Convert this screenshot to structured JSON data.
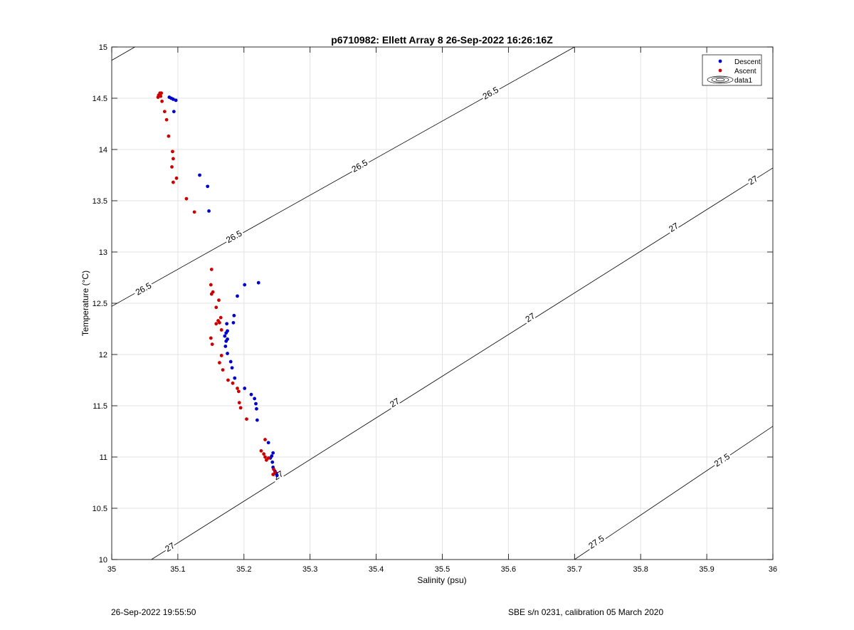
{
  "chart_data": {
    "type": "scatter",
    "title": "p6710982: Ellett Array 8 26-Sep-2022 16:26:16Z",
    "xlabel": "Salinity (psu)",
    "ylabel": "Temperature (°C)",
    "xlim": [
      35,
      36
    ],
    "ylim": [
      10,
      15
    ],
    "xticks": [
      "35",
      "35.1",
      "35.2",
      "35.3",
      "35.4",
      "35.5",
      "35.6",
      "35.7",
      "35.8",
      "35.9",
      "36"
    ],
    "yticks": [
      "10",
      "10.5",
      "11",
      "11.5",
      "12",
      "12.5",
      "13",
      "13.5",
      "14",
      "14.5",
      "15"
    ],
    "grid": true,
    "legend_position": "top-right",
    "legend": [
      "Descent",
      "Ascent",
      "data1"
    ],
    "colors": {
      "descent": "#0000cc",
      "ascent": "#cc0000",
      "contour": "#000000",
      "grid": "#e3e3e3"
    },
    "series": [
      {
        "name": "Descent",
        "points": [
          [
            35.087,
            14.51
          ],
          [
            35.09,
            14.5
          ],
          [
            35.093,
            14.49
          ],
          [
            35.097,
            14.48
          ],
          [
            35.094,
            14.37
          ],
          [
            35.133,
            13.75
          ],
          [
            35.145,
            13.64
          ],
          [
            35.147,
            13.4
          ],
          [
            35.222,
            12.7
          ],
          [
            35.201,
            12.68
          ],
          [
            35.19,
            12.57
          ],
          [
            35.185,
            12.38
          ],
          [
            35.174,
            12.3
          ],
          [
            35.184,
            12.31
          ],
          [
            35.175,
            12.23
          ],
          [
            35.173,
            12.21
          ],
          [
            35.171,
            12.18
          ],
          [
            35.175,
            12.15
          ],
          [
            35.173,
            12.13
          ],
          [
            35.172,
            12.08
          ],
          [
            35.175,
            12.01
          ],
          [
            35.18,
            11.93
          ],
          [
            35.182,
            11.87
          ],
          [
            35.186,
            11.77
          ],
          [
            35.201,
            11.67
          ],
          [
            35.211,
            11.61
          ],
          [
            35.216,
            11.57
          ],
          [
            35.218,
            11.52
          ],
          [
            35.219,
            11.47
          ],
          [
            35.22,
            11.36
          ],
          [
            35.237,
            11.14
          ],
          [
            35.244,
            11.04
          ],
          [
            35.242,
            11.01
          ],
          [
            35.24,
            10.99
          ],
          [
            35.243,
            10.95
          ],
          [
            35.244,
            10.9
          ],
          [
            35.247,
            10.86
          ],
          [
            35.249,
            10.84
          ],
          [
            35.25,
            10.82
          ]
        ]
      },
      {
        "name": "Ascent",
        "points": [
          [
            35.073,
            14.55
          ],
          [
            35.075,
            14.55
          ],
          [
            35.071,
            14.53
          ],
          [
            35.074,
            14.52
          ],
          [
            35.07,
            14.51
          ],
          [
            35.076,
            14.47
          ],
          [
            35.08,
            14.37
          ],
          [
            35.083,
            14.29
          ],
          [
            35.086,
            14.13
          ],
          [
            35.092,
            13.98
          ],
          [
            35.093,
            13.91
          ],
          [
            35.091,
            13.83
          ],
          [
            35.098,
            13.72
          ],
          [
            35.093,
            13.68
          ],
          [
            35.113,
            13.52
          ],
          [
            35.125,
            13.39
          ],
          [
            35.151,
            12.83
          ],
          [
            35.15,
            12.68
          ],
          [
            35.153,
            12.61
          ],
          [
            35.151,
            12.59
          ],
          [
            35.162,
            12.53
          ],
          [
            35.158,
            12.46
          ],
          [
            35.165,
            12.36
          ],
          [
            35.161,
            12.33
          ],
          [
            35.158,
            12.3
          ],
          [
            35.163,
            12.31
          ],
          [
            35.166,
            12.24
          ],
          [
            35.15,
            12.16
          ],
          [
            35.152,
            12.1
          ],
          [
            35.166,
            11.99
          ],
          [
            35.163,
            11.92
          ],
          [
            35.168,
            11.85
          ],
          [
            35.176,
            11.75
          ],
          [
            35.183,
            11.72
          ],
          [
            35.19,
            11.67
          ],
          [
            35.192,
            11.64
          ],
          [
            35.193,
            11.53
          ],
          [
            35.195,
            11.48
          ],
          [
            35.204,
            11.37
          ],
          [
            35.232,
            11.17
          ],
          [
            35.226,
            11.06
          ],
          [
            35.23,
            11.03
          ],
          [
            35.232,
            11.0
          ],
          [
            35.234,
            10.97
          ],
          [
            35.237,
            10.99
          ],
          [
            35.245,
            10.88
          ],
          [
            35.247,
            10.85
          ],
          [
            35.244,
            10.83
          ]
        ]
      }
    ],
    "contour_levels": [
      {
        "level": "26.5",
        "line": [
          [
            35.0,
            14.87
          ],
          [
            35.035,
            15.0
          ]
        ]
      },
      {
        "level": "26.5",
        "line": [
          [
            35.0,
            12.47
          ],
          [
            35.7,
            15.0
          ]
        ],
        "labels": [
          [
            35.048,
            12.64
          ],
          [
            35.185,
            13.15
          ],
          [
            35.375,
            13.84
          ],
          [
            35.573,
            14.55
          ]
        ]
      },
      {
        "level": "27",
        "line": [
          [
            35.06,
            10.0
          ],
          [
            36.0,
            13.82
          ]
        ],
        "labels": [
          [
            35.088,
            10.12
          ],
          [
            35.252,
            10.82
          ],
          [
            35.428,
            11.53
          ],
          [
            35.633,
            12.36
          ],
          [
            35.85,
            13.24
          ],
          [
            35.97,
            13.7
          ]
        ]
      },
      {
        "level": "27.5",
        "line": [
          [
            35.7,
            10.0
          ],
          [
            36.0,
            11.3
          ]
        ],
        "labels": [
          [
            35.733,
            10.17
          ],
          [
            35.923,
            10.97
          ]
        ]
      }
    ]
  },
  "footer": {
    "left": "26-Sep-2022 19:55:50",
    "right": "SBE s/n 0231, calibration 05 March 2020"
  }
}
